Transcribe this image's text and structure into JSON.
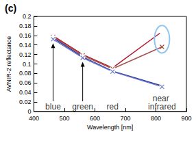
{
  "chart_data": {
    "type": "line",
    "title": "(c)",
    "x_label": "Wavelength [nm]",
    "y_label": "AVNIR-2 reflectance",
    "x": [
      463,
      560,
      658,
      820
    ],
    "series": [
      {
        "color": "#b2182b",
        "marker": "circle",
        "values": [
          0.159,
          0.12,
          0.092,
          0.168
        ]
      },
      {
        "color": "#a4524a",
        "marker": "x",
        "values": [
          0.157,
          0.118,
          0.09,
          0.136
        ]
      },
      {
        "color": "#2b3a9e",
        "marker": "circle",
        "values": [
          0.155,
          0.115,
          0.085,
          0.054
        ]
      },
      {
        "color": "#6a78c8",
        "marker": "x",
        "values": [
          0.152,
          0.113,
          0.084,
          0.052
        ]
      }
    ],
    "xlim": [
      400,
      900
    ],
    "xticks": [
      400,
      500,
      600,
      700,
      800,
      900
    ],
    "ylim": [
      0,
      0.2
    ],
    "yticks": [
      0,
      0.02,
      0.04,
      0.06,
      0.08,
      0.1,
      0.12,
      0.14,
      0.16,
      0.18,
      0.2
    ],
    "grid": false,
    "annotations": [
      {
        "text": "blue",
        "x": 463,
        "y": 0.01
      },
      {
        "text": "green",
        "x": 560,
        "y": 0.01
      },
      {
        "text": "red",
        "x": 658,
        "y": 0.01
      },
      {
        "text": "near infrared",
        "x": 820,
        "y": 0.018
      }
    ]
  }
}
